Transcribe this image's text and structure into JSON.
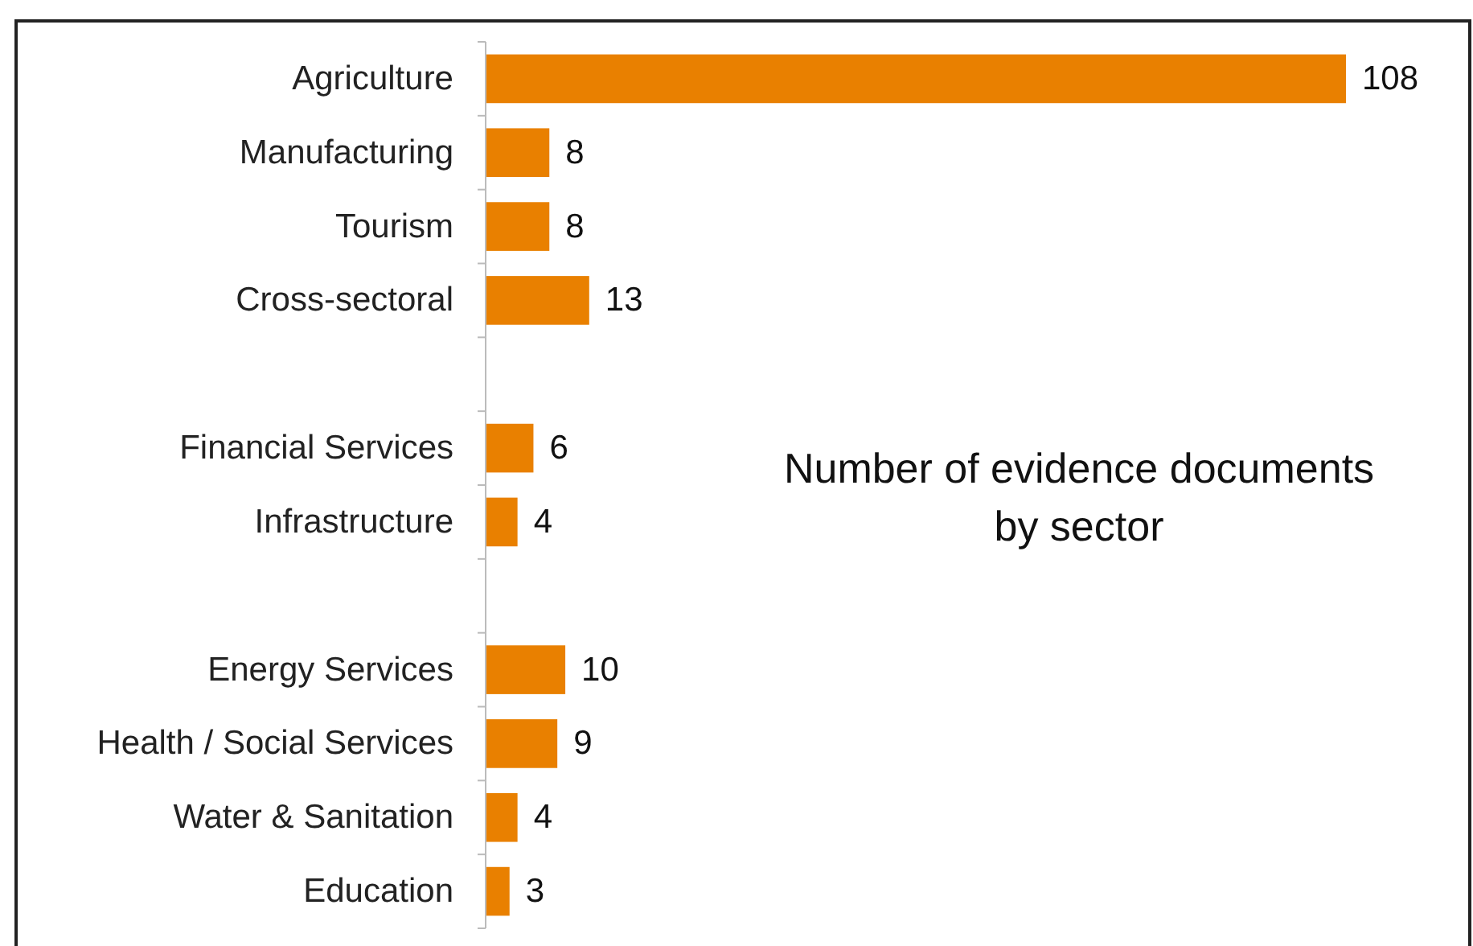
{
  "chart_data": {
    "type": "bar",
    "orientation": "horizontal",
    "categories": [
      "Agriculture",
      "Manufacturing",
      "Tourism",
      "Cross-sectoral",
      null,
      "Financial Services",
      "Infrastructure",
      null,
      "Energy Services",
      "Health / Social Services",
      "Water & Sanitation",
      "Education"
    ],
    "values": [
      108,
      8,
      8,
      13,
      null,
      6,
      4,
      null,
      10,
      9,
      4,
      3
    ],
    "color": "#e98000",
    "data_labels": true,
    "annotations": [
      "Number of evidence documents by sector"
    ]
  }
}
